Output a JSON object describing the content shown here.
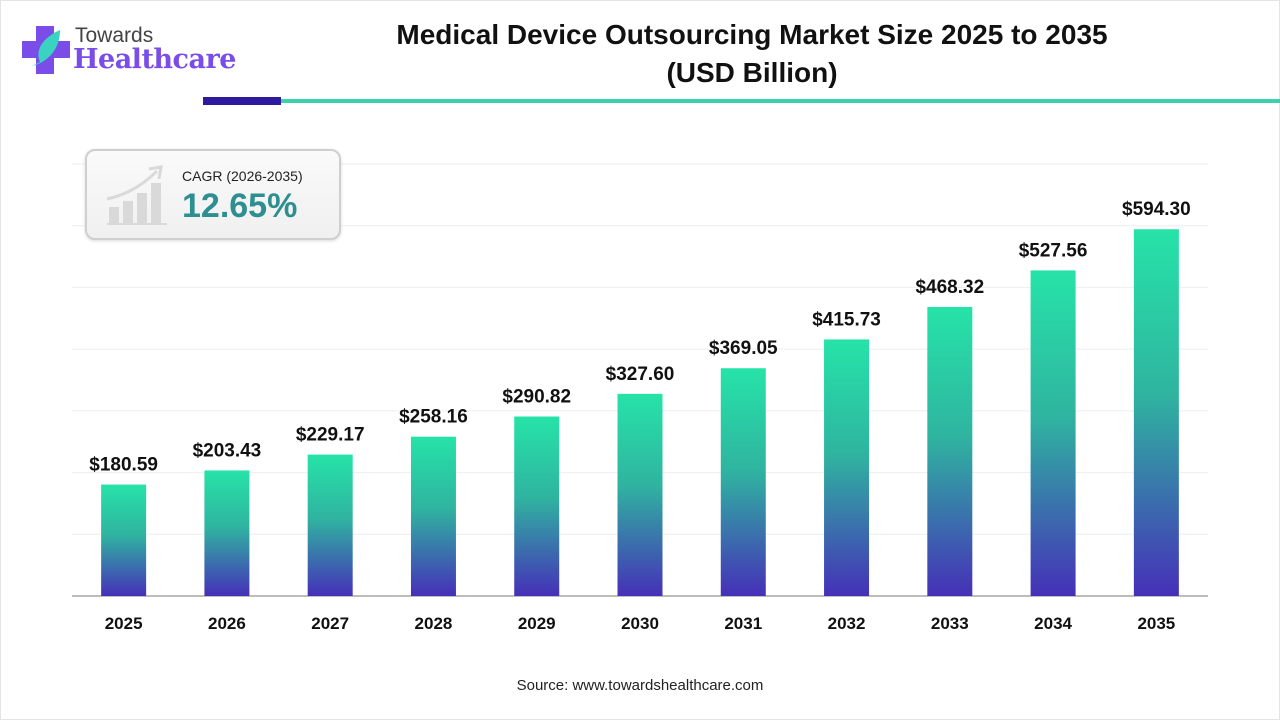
{
  "brand": {
    "logo_top": "Towards",
    "logo_main": "Healthcare",
    "colors": {
      "purple": "#7a4de8",
      "teal": "#3ad2aa",
      "dark": "#2e1a9e"
    }
  },
  "cagr": {
    "label": "CAGR (2026-2035)",
    "value": "12.65%",
    "icon": "growth-chart-icon"
  },
  "source": "Source: www.towardshealthcare.com",
  "chart_data": {
    "type": "bar",
    "title": "Medical Device Outsourcing Market Size 2025 to 2035",
    "subtitle": "(USD Billion)",
    "categories": [
      "2025",
      "2026",
      "2027",
      "2028",
      "2029",
      "2030",
      "2031",
      "2032",
      "2033",
      "2034",
      "2035"
    ],
    "values": [
      180.59,
      203.43,
      229.17,
      258.16,
      290.82,
      327.6,
      369.05,
      415.73,
      468.32,
      527.56,
      594.3
    ],
    "labels": [
      "$180.59",
      "$203.43",
      "$229.17",
      "$258.16",
      "$290.82",
      "$327.60",
      "$369.05",
      "$415.73",
      "$468.32",
      "$527.56",
      "$594.30"
    ],
    "xlabel": "",
    "ylabel": "",
    "ylim": [
      0,
      700
    ],
    "grid": true,
    "gradient": {
      "top": "#26e3a8",
      "bottom": "#4530b8"
    }
  }
}
